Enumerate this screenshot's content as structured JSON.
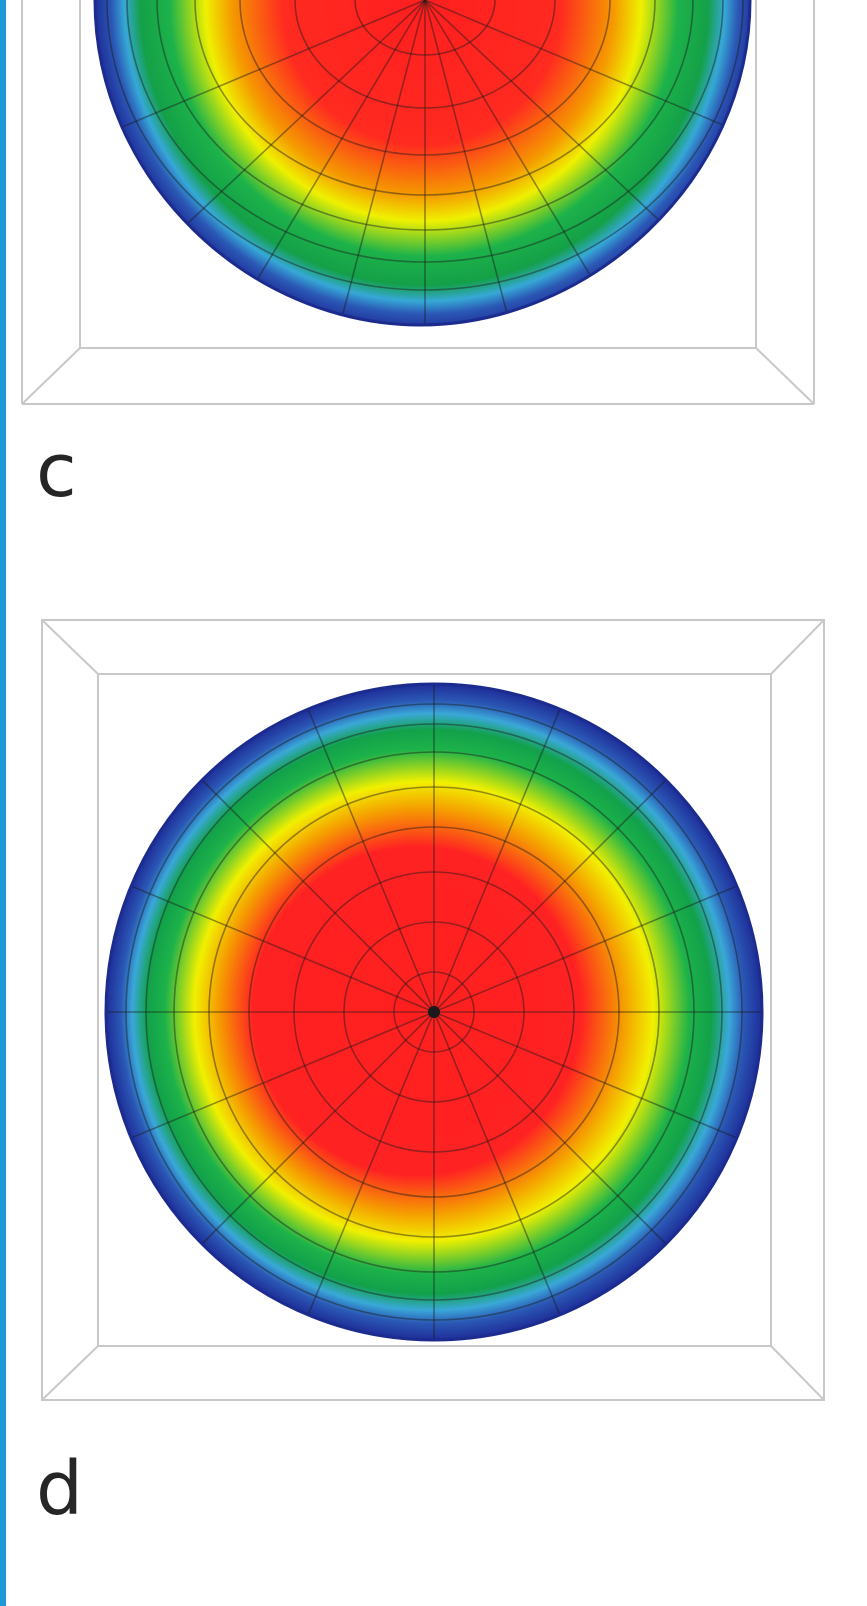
{
  "figure": {
    "accent_color": "#1d9ad6",
    "panels": [
      {
        "id": "c",
        "label": "c",
        "render": "spherical-dome-heatmap",
        "view": "cropped"
      },
      {
        "id": "d",
        "label": "d",
        "render": "spherical-dome-heatmap",
        "view": "top"
      }
    ],
    "colormap": [
      "#1f2f9a",
      "#3aa0dc",
      "#1eb04a",
      "#f2f100",
      "#f7a900",
      "#ff1a1a"
    ]
  }
}
